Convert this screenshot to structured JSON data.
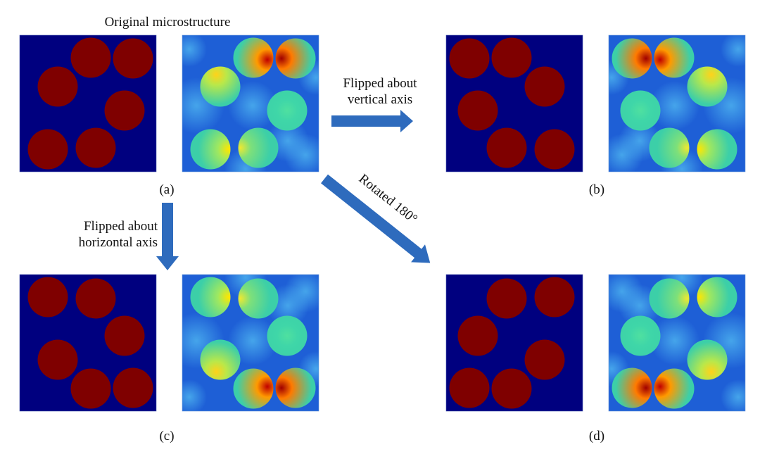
{
  "title": "Original microstructure",
  "panels": [
    {
      "id": "a",
      "label": "(a)",
      "transform": "original"
    },
    {
      "id": "b",
      "label": "(b)",
      "transform": "flip-vertical-axis"
    },
    {
      "id": "c",
      "label": "(c)",
      "transform": "flip-horizontal-axis"
    },
    {
      "id": "d",
      "label": "(d)",
      "transform": "rotate-180"
    }
  ],
  "arrows": {
    "right": {
      "line1": "Flipped about",
      "line2": "vertical axis"
    },
    "down": {
      "line1": "Flipped about",
      "line2": "horizontal axis"
    },
    "diagonal": {
      "label": "Rotated 180°"
    }
  },
  "colors": {
    "matrix": "#00007f",
    "inclusion": "#7f0000",
    "arrow": "#2e6bbd",
    "field_low": "#1e5fd6",
    "field_mid": "#35d3a8",
    "field_high": "#e01010"
  }
}
